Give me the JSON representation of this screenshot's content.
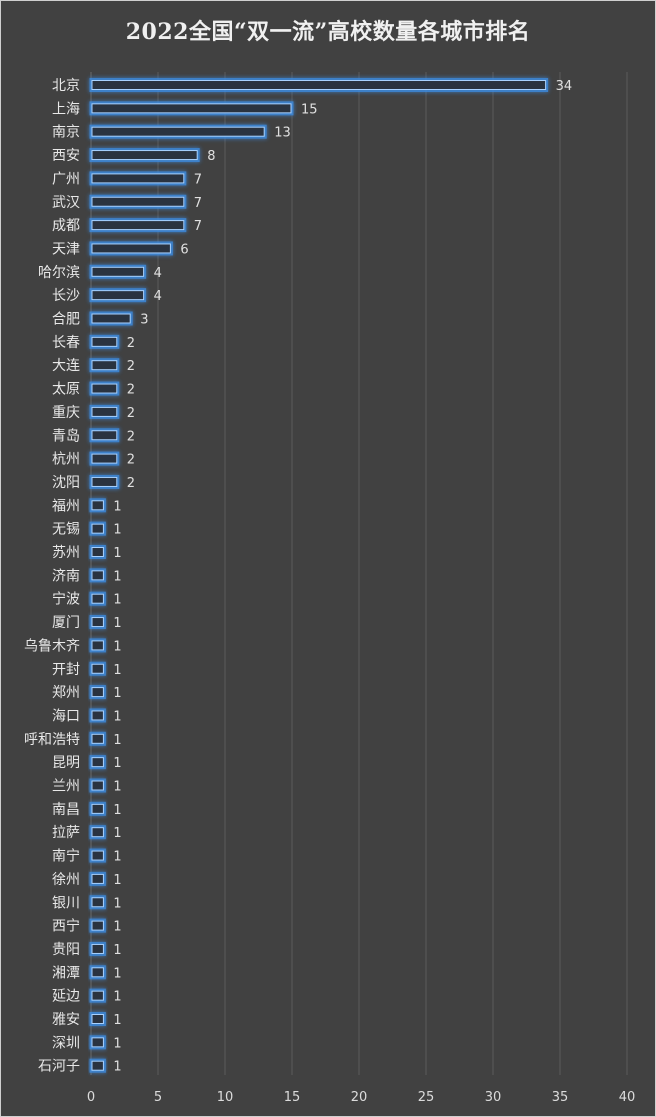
{
  "chart_data": {
    "type": "bar",
    "orientation": "horizontal",
    "title": "2022全国“双一流”高校数量各城市排名",
    "categories": [
      "北京",
      "上海",
      "南京",
      "西安",
      "广州",
      "武汉",
      "成都",
      "天津",
      "哈尔滨",
      "长沙",
      "合肥",
      "长春",
      "大连",
      "太原",
      "重庆",
      "青岛",
      "杭州",
      "沈阳",
      "福州",
      "无锡",
      "苏州",
      "济南",
      "宁波",
      "厦门",
      "乌鲁木齐",
      "开封",
      "郑州",
      "海口",
      "呼和浩特",
      "昆明",
      "兰州",
      "南昌",
      "拉萨",
      "南宁",
      "徐州",
      "银川",
      "西宁",
      "贵阳",
      "湘潭",
      "延边",
      "雅安",
      "深圳",
      "石河子"
    ],
    "values": [
      34,
      15,
      13,
      8,
      7,
      7,
      7,
      6,
      4,
      4,
      3,
      2,
      2,
      2,
      2,
      2,
      2,
      2,
      1,
      1,
      1,
      1,
      1,
      1,
      1,
      1,
      1,
      1,
      1,
      1,
      1,
      1,
      1,
      1,
      1,
      1,
      1,
      1,
      1,
      1,
      1,
      1,
      1
    ],
    "xticks": [
      "0",
      "5",
      "10",
      "15",
      "20",
      "25",
      "30",
      "35",
      "40"
    ],
    "xlim": [
      0,
      40
    ],
    "grid": "vertical",
    "bar_color": "#4a90d9",
    "background": "#414141",
    "text_color": "#e8e8e8"
  }
}
